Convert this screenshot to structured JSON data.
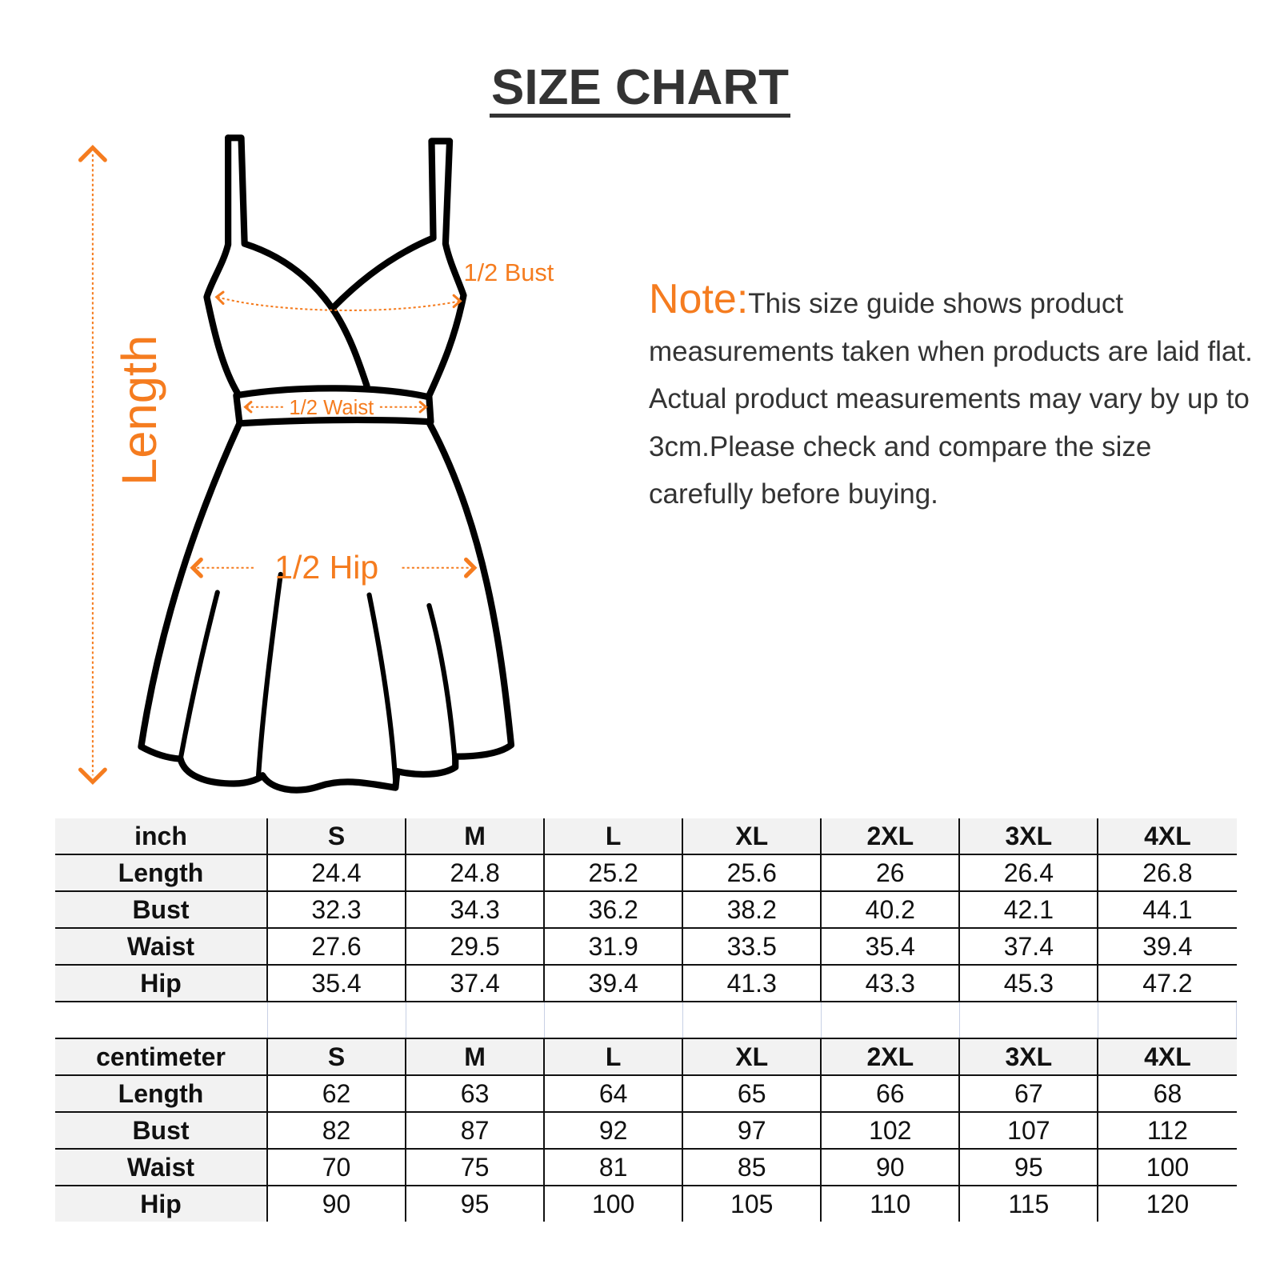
{
  "title": "SIZE CHART",
  "note": {
    "label": "Note:",
    "text": "This size guide shows product measurements taken when products are laid flat. Actual product measurements may vary by up to 3cm.Please check and compare the size carefully before buying."
  },
  "diagram": {
    "length_label": "Length",
    "bust_label": "1/2 Bust",
    "waist_label": "1/2 Waist",
    "hip_label": "1/2 Hip",
    "accent_color": "#f57c1f"
  },
  "sizes": [
    "S",
    "M",
    "L",
    "XL",
    "2XL",
    "3XL",
    "4XL"
  ],
  "inch_table": {
    "unit": "inch",
    "rows": [
      {
        "label": "Length",
        "values": [
          "24.4",
          "24.8",
          "25.2",
          "25.6",
          "26",
          "26.4",
          "26.8"
        ]
      },
      {
        "label": "Bust",
        "values": [
          "32.3",
          "34.3",
          "36.2",
          "38.2",
          "40.2",
          "42.1",
          "44.1"
        ]
      },
      {
        "label": "Waist",
        "values": [
          "27.6",
          "29.5",
          "31.9",
          "33.5",
          "35.4",
          "37.4",
          "39.4"
        ]
      },
      {
        "label": "Hip",
        "values": [
          "35.4",
          "37.4",
          "39.4",
          "41.3",
          "43.3",
          "45.3",
          "47.2"
        ]
      }
    ]
  },
  "cm_table": {
    "unit": "centimeter",
    "rows": [
      {
        "label": "Length",
        "values": [
          "62",
          "63",
          "64",
          "65",
          "66",
          "67",
          "68"
        ]
      },
      {
        "label": "Bust",
        "values": [
          "82",
          "87",
          "92",
          "97",
          "102",
          "107",
          "112"
        ]
      },
      {
        "label": "Waist",
        "values": [
          "70",
          "75",
          "81",
          "85",
          "90",
          "95",
          "100"
        ]
      },
      {
        "label": "Hip",
        "values": [
          "90",
          "95",
          "100",
          "105",
          "110",
          "115",
          "120"
        ]
      }
    ]
  }
}
